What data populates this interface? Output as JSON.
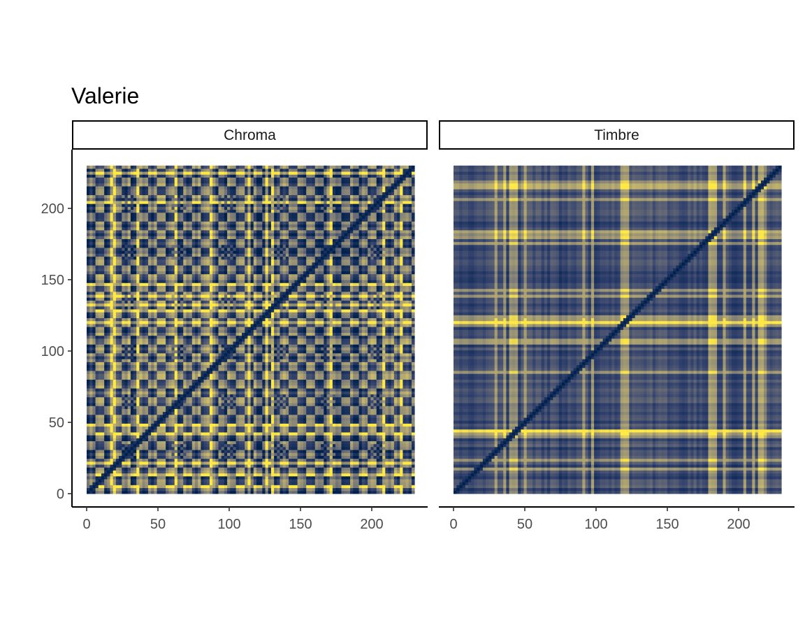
{
  "chart_data": {
    "type": "heatmap",
    "title": "Valerie",
    "xlabel": "",
    "ylabel": "",
    "colormap": "cividis",
    "colors": {
      "low": "#00204d",
      "mid": "#7c7b78",
      "high": "#ffe945"
    },
    "grid": false,
    "legend": "none",
    "facets": [
      {
        "label": "Chroma",
        "xlim": [
          0,
          230
        ],
        "ylim": [
          0,
          230
        ],
        "x_ticks": [
          0,
          50,
          100,
          150,
          200
        ],
        "y_ticks": [
          0,
          50,
          100,
          150,
          200
        ],
        "cells": 112,
        "diagonal": "self-similarity",
        "pattern": "repeating checkerboard blocks"
      },
      {
        "label": "Timbre",
        "xlim": [
          0,
          230
        ],
        "ylim": [
          0,
          230
        ],
        "x_ticks": [
          0,
          50,
          100,
          150,
          200
        ],
        "y_ticks": [],
        "cells": 112,
        "diagonal": "self-similarity",
        "pattern": "bright bands near x/y = 42, 120, 180"
      }
    ]
  }
}
